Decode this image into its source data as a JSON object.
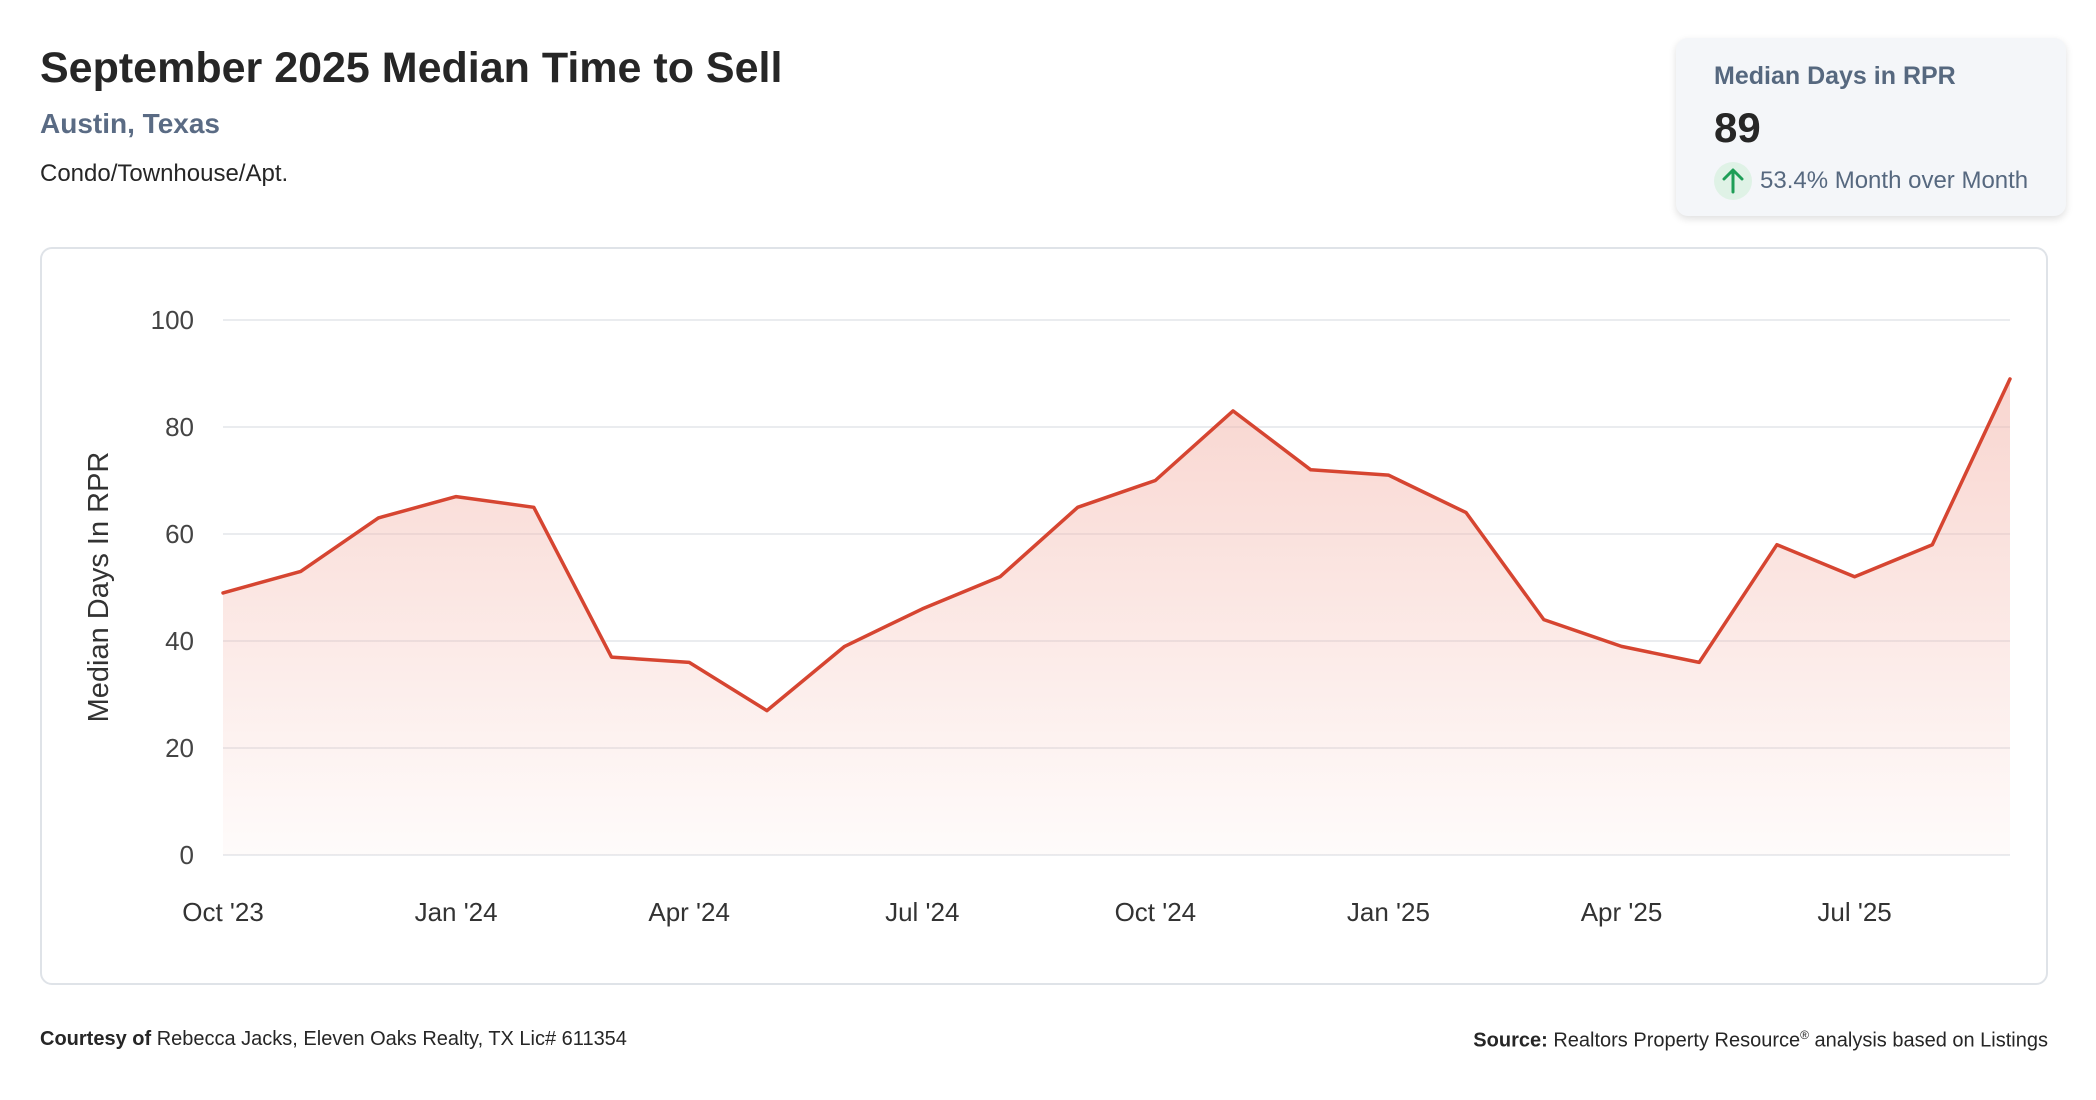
{
  "header": {
    "title": "September 2025 Median Time to Sell",
    "location": "Austin, Texas",
    "property_type": "Condo/Townhouse/Apt."
  },
  "stat_card": {
    "label": "Median Days in RPR",
    "value": "89",
    "change": "53.4% Month over Month",
    "change_direction": "up",
    "icon": "arrow-up-icon",
    "icon_color": "#1e9e57"
  },
  "chart_data": {
    "type": "area",
    "ylabel": "Median Days In RPR",
    "ylim": [
      0,
      100
    ],
    "yticks": [
      0,
      20,
      40,
      60,
      80,
      100
    ],
    "x": [
      "2023-10",
      "2023-11",
      "2023-12",
      "2024-01",
      "2024-02",
      "2024-03",
      "2024-04",
      "2024-05",
      "2024-06",
      "2024-07",
      "2024-08",
      "2024-09",
      "2024-10",
      "2024-11",
      "2024-12",
      "2025-01",
      "2025-02",
      "2025-03",
      "2025-04",
      "2025-05",
      "2025-06",
      "2025-07",
      "2025-08",
      "2025-09"
    ],
    "values": [
      49,
      53,
      63,
      67,
      65,
      37,
      36,
      27,
      39,
      46,
      52,
      65,
      70,
      83,
      72,
      71,
      64,
      44,
      39,
      36,
      58,
      52,
      58,
      89
    ],
    "xtick_labels": [
      "Oct '23",
      "Jan '24",
      "Apr '24",
      "Jul '24",
      "Oct '24",
      "Jan '25",
      "Apr '25",
      "Jul '25"
    ],
    "xtick_indices": [
      0,
      3,
      6,
      9,
      12,
      15,
      18,
      21
    ],
    "line_color": "#d64531",
    "fill_color": "#f3b3a8",
    "grid": true,
    "legend": "none"
  },
  "footer": {
    "courtesy_label": "Courtesy of",
    "courtesy_text": "Rebecca Jacks, Eleven Oaks Realty, TX Lic# 611354",
    "source_label": "Source:",
    "source_text_before": "Realtors Property Resource",
    "source_sup": "®",
    "source_text_after": "analysis based on Listings"
  }
}
